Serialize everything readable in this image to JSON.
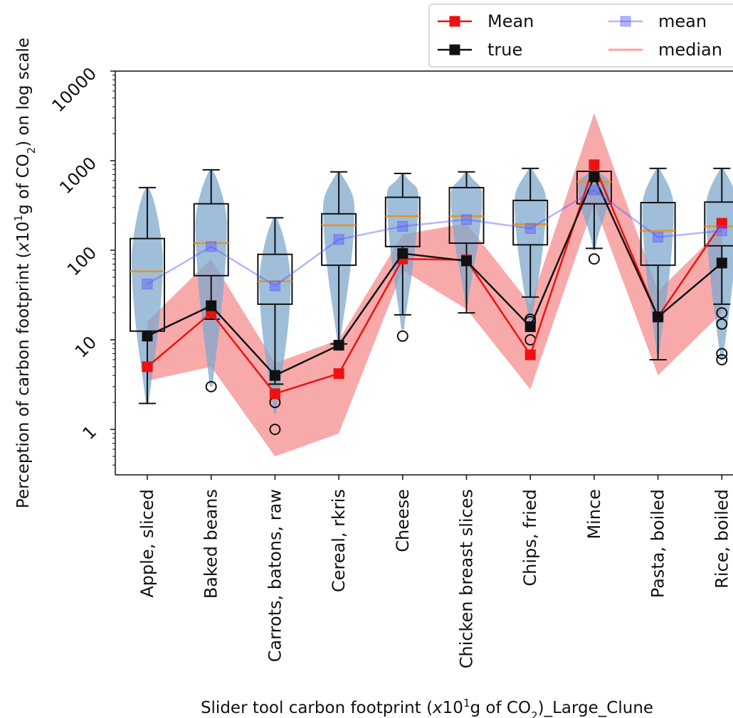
{
  "chart_data": {
    "type": "box",
    "scale": "log",
    "ylim": [
      0.3,
      10000
    ],
    "yticks": [
      1,
      10,
      100,
      1000,
      10000
    ],
    "ytick_labels": [
      "1",
      "10",
      "100",
      "1000",
      "10000"
    ],
    "ylabel": {
      "prefix": "Perception of carbon footprint (",
      "var": "x",
      "mid": "10",
      "sup": "1",
      "after": "g of CO",
      "sub": "2",
      "suffix": ") on log scale"
    },
    "xlabel": {
      "prefix": "Slider tool carbon footprint (",
      "var": "x",
      "mid": "10",
      "sup": "1",
      "after": "g of CO",
      "sub": "2",
      "suffix": ")_Large_Clune"
    },
    "categories": [
      "Apple, sliced",
      "Baked beans",
      "Carrots, batons, raw",
      "Cereal, rkris",
      "Cheese",
      "Chicken breast slices",
      "Chips, fried",
      "Mince",
      "Pasta, boiled",
      "Rice, boiled"
    ],
    "legend": {
      "position": "top-right",
      "entries": [
        "Mean",
        "true",
        "mean",
        "median"
      ]
    },
    "series": [
      {
        "name": "Mean",
        "color": "#ee1111",
        "marker": "square",
        "values": [
          5,
          20,
          2.5,
          4.2,
          80,
          78,
          6.8,
          900,
          18,
          200
        ]
      },
      {
        "name": "true",
        "color": "#111111",
        "marker": "square",
        "values": [
          11,
          24,
          4,
          8.7,
          92,
          76,
          14,
          660,
          18,
          72
        ]
      },
      {
        "name": "mean",
        "color": "#5b5bff",
        "marker": "square",
        "values": [
          42,
          110,
          40,
          132,
          185,
          220,
          175,
          470,
          140,
          165
        ]
      }
    ],
    "band": {
      "name": "median",
      "color": "#f25555",
      "low": [
        3.5,
        5,
        0.5,
        0.9,
        60,
        22,
        2.8,
        330,
        4,
        20
      ],
      "high": [
        16,
        80,
        5.5,
        10,
        150,
        200,
        25,
        3400,
        35,
        175
      ]
    },
    "boxes": [
      {
        "whislo": 1.95,
        "q1": 12.5,
        "med": 58,
        "q3": 135,
        "whishi": 500,
        "fliers": []
      },
      {
        "whislo": 17,
        "q1": 52,
        "med": 120,
        "q3": 330,
        "whishi": 790,
        "fliers": [
          3
        ]
      },
      {
        "whislo": 3.2,
        "q1": 25,
        "med": 45,
        "q3": 90,
        "whishi": 230,
        "fliers": [
          2,
          1
        ]
      },
      {
        "whislo": 9,
        "q1": 68,
        "med": 190,
        "q3": 255,
        "whishi": 750,
        "fliers": []
      },
      {
        "whislo": 19,
        "q1": 110,
        "med": 240,
        "q3": 390,
        "whishi": 720,
        "fliers": [
          11
        ]
      },
      {
        "whislo": 20,
        "q1": 120,
        "med": 240,
        "q3": 500,
        "whishi": 750,
        "fliers": []
      },
      {
        "whislo": 30,
        "q1": 115,
        "med": 195,
        "q3": 360,
        "whishi": 820,
        "fliers": [
          17,
          16,
          10
        ]
      },
      {
        "whislo": 105,
        "q1": 330,
        "med": 580,
        "q3": 760,
        "whishi": 760,
        "fliers": [
          80
        ]
      },
      {
        "whislo": 6,
        "q1": 68,
        "med": 165,
        "q3": 340,
        "whishi": 820,
        "fliers": []
      },
      {
        "whislo": 25,
        "q1": 112,
        "med": 185,
        "q3": 345,
        "whishi": 820,
        "fliers": [
          20,
          15,
          7,
          6
        ]
      }
    ],
    "violins": [
      {
        "lo": 1.9,
        "hi": 500,
        "peak": 80
      },
      {
        "lo": 3,
        "hi": 790,
        "peak": 200
      },
      {
        "lo": 1.5,
        "hi": 230,
        "peak": 45
      },
      {
        "lo": 9,
        "hi": 750,
        "peak": 300
      },
      {
        "lo": 13,
        "hi": 720,
        "peak": 400
      },
      {
        "lo": 25,
        "hi": 750,
        "peak": 400
      },
      {
        "lo": 15,
        "hi": 820,
        "peak": 350
      },
      {
        "lo": 100,
        "hi": 850,
        "peak": 500
      },
      {
        "lo": 7,
        "hi": 820,
        "peak": 300
      },
      {
        "lo": 6,
        "hi": 820,
        "peak": 300
      }
    ],
    "colors": {
      "violin": "#7fa8cc",
      "box": "#111111",
      "median_line": "#e8941f",
      "band": "#f25555"
    }
  }
}
